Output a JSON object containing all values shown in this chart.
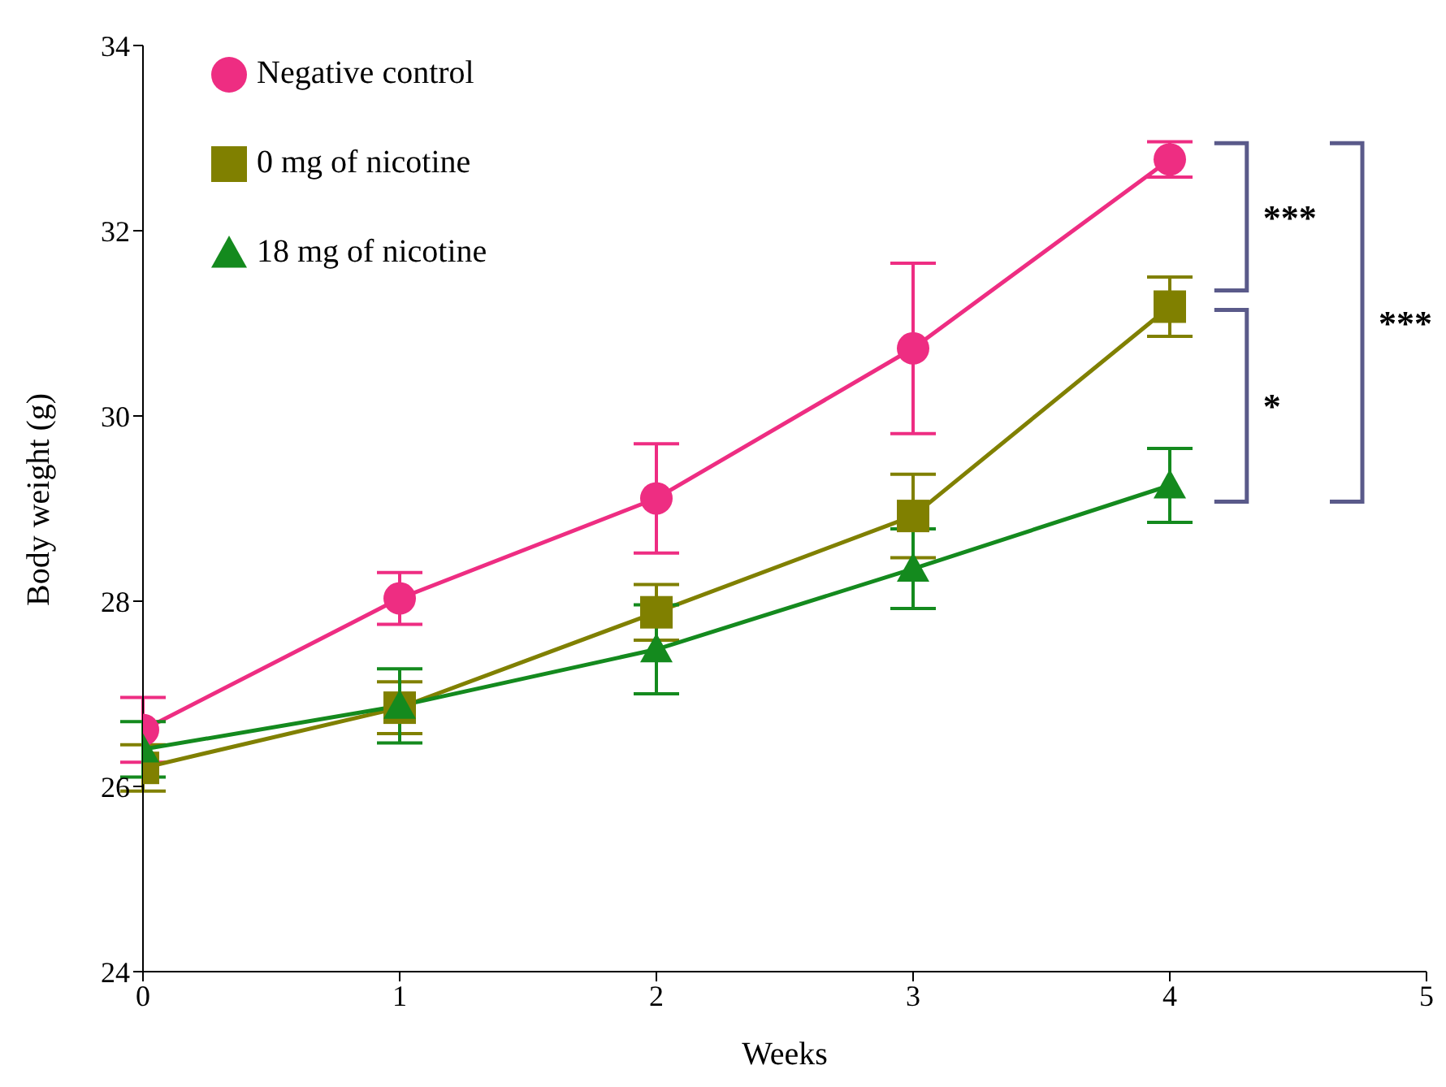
{
  "chart_data": {
    "type": "line",
    "xlabel": "Weeks",
    "ylabel": "Body weight (g)",
    "x": [
      0,
      1,
      2,
      3,
      4
    ],
    "series": [
      {
        "name": "Negative control",
        "color": "#ee2d82",
        "marker": "circle",
        "values": [
          26.61,
          28.03,
          29.11,
          30.73,
          32.77
        ],
        "errors": [
          0.35,
          0.28,
          0.59,
          0.92,
          0.19
        ]
      },
      {
        "name": "0 mg of nicotine",
        "color": "#808000",
        "marker": "square",
        "values": [
          26.2,
          26.85,
          27.88,
          28.92,
          31.18
        ],
        "errors": [
          0.25,
          0.28,
          0.3,
          0.45,
          0.32
        ]
      },
      {
        "name": "18 mg of nicotine",
        "color": "#148a1e",
        "marker": "triangle",
        "values": [
          26.4,
          26.87,
          27.48,
          28.35,
          29.25
        ],
        "errors": [
          0.3,
          0.4,
          0.48,
          0.43,
          0.4
        ]
      }
    ],
    "xlim": [
      0,
      5
    ],
    "xticks": [
      0,
      1,
      2,
      3,
      4,
      5
    ],
    "ylim": [
      24,
      34
    ],
    "yticks": [
      24,
      26,
      28,
      30,
      32,
      34
    ],
    "grid": false,
    "legend": "top left",
    "line_style": "solid",
    "annotations": [
      "***",
      "*",
      "***"
    ]
  }
}
